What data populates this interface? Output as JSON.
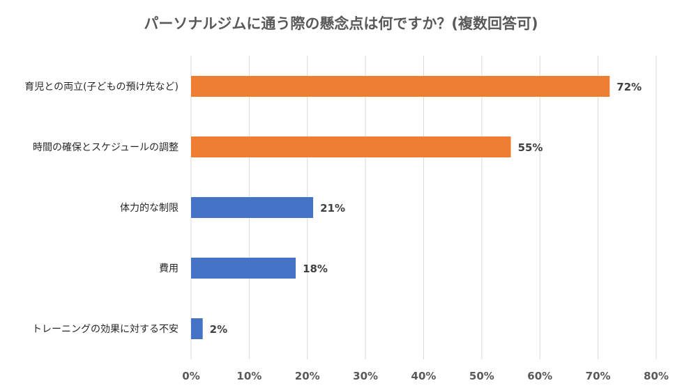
{
  "chart_data": {
    "type": "bar",
    "orientation": "horizontal",
    "title": "パーソナルジムに通う際の懸念点は何ですか？(複数回答可)",
    "categories": [
      "育児との両立(子どもの預け先など)",
      "時間の確保とスケジュールの調整",
      "体力的な制限",
      "費用",
      "トレーニングの効果に対する不安"
    ],
    "values": [
      72,
      55,
      21,
      18,
      2
    ],
    "value_labels": [
      "72%",
      "55%",
      "21%",
      "18%",
      "2%"
    ],
    "bar_colors": [
      "#ED7D31",
      "#ED7D31",
      "#4472C4",
      "#4472C4",
      "#4472C4"
    ],
    "xlim": [
      0,
      80
    ],
    "xticks": [
      0,
      10,
      20,
      30,
      40,
      50,
      60,
      70,
      80
    ],
    "xtick_labels": [
      "0%",
      "10%",
      "20%",
      "30%",
      "40%",
      "50%",
      "60%",
      "70%",
      "80%"
    ],
    "xlabel": "",
    "ylabel": "",
    "grid": true,
    "legend": false
  }
}
